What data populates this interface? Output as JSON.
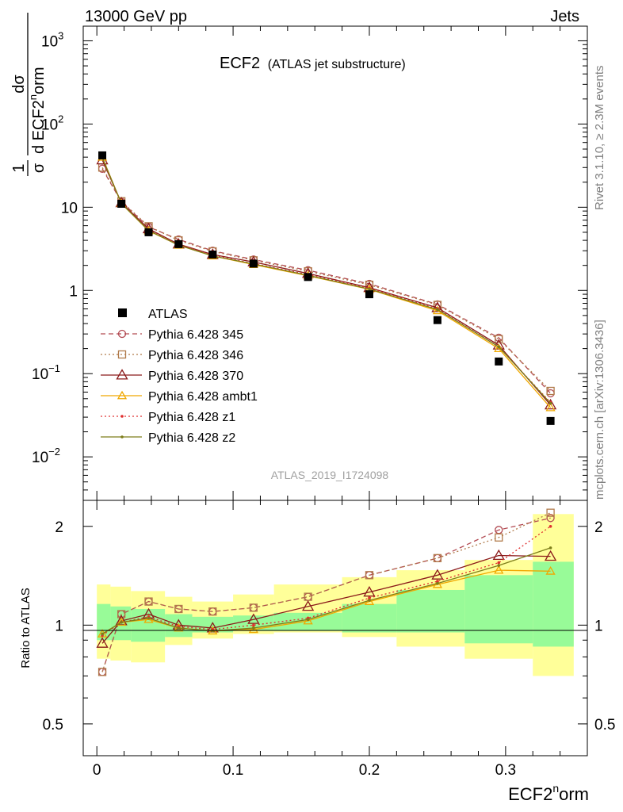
{
  "header": {
    "left": "13000 GeV pp",
    "right": "Jets"
  },
  "side_labels": {
    "rivet": "Rivet 3.1.10, ≥ 2.3M events",
    "mcplots": "mcplots.cern.ch [arXiv:1306.3436]"
  },
  "watermark": "ATLAS_2019_I1724098",
  "chart_data": {
    "type": "line",
    "title": "ECF2",
    "subtitle": "(ATLAS jet substructure)",
    "xlabel": "ECF2",
    "xlabel_sup": "n",
    "xlabel_tail": "orm",
    "ylabel_top": {
      "frac1": {
        "num": "1",
        "den": "σ"
      },
      "frac2": {
        "num": "dσ",
        "den": "d ECF2",
        "den_sup": "n",
        "den_tail": "orm"
      }
    },
    "ratio_ylabel": "Ratio to ATLAS",
    "xlim": [
      -0.01,
      0.36
    ],
    "ylim_main": [
      0.003,
      1500
    ],
    "ylim_ratio": [
      0.4,
      2.4
    ],
    "log_y_main": true,
    "log_y_ratio": true,
    "x_ticks": [
      0,
      0.1,
      0.2,
      0.3
    ],
    "x_tick_labels": [
      "0",
      "0.1",
      "0.2",
      "0.3"
    ],
    "main_y_ticks": [
      {
        "value": 1000,
        "base": "10",
        "exp": "3"
      },
      {
        "value": 100,
        "base": "10",
        "exp": "2"
      },
      {
        "value": 10,
        "base": "10",
        "exp": ""
      },
      {
        "value": 1,
        "base": "1",
        "exp": ""
      },
      {
        "value": 0.1,
        "base": "10",
        "exp": "−1"
      },
      {
        "value": 0.01,
        "base": "10",
        "exp": "−2"
      }
    ],
    "ratio_y_ticks": [
      {
        "value": 2,
        "label": "2"
      },
      {
        "value": 1,
        "label": "1"
      },
      {
        "value": 0.5,
        "label": "0.5"
      }
    ],
    "x": [
      0.004,
      0.018,
      0.038,
      0.06,
      0.085,
      0.115,
      0.155,
      0.2,
      0.25,
      0.295,
      0.333
    ],
    "bins": [
      [
        0.0,
        0.01
      ],
      [
        0.01,
        0.025
      ],
      [
        0.025,
        0.05
      ],
      [
        0.05,
        0.07
      ],
      [
        0.07,
        0.1
      ],
      [
        0.1,
        0.13
      ],
      [
        0.13,
        0.18
      ],
      [
        0.18,
        0.22
      ],
      [
        0.22,
        0.27
      ],
      [
        0.27,
        0.32
      ],
      [
        0.32,
        0.35
      ]
    ],
    "band_yellow": [
      [
        0.79,
        1.33
      ],
      [
        0.78,
        1.31
      ],
      [
        0.77,
        1.27
      ],
      [
        0.87,
        1.22
      ],
      [
        0.91,
        1.18
      ],
      [
        0.94,
        1.24
      ],
      [
        0.95,
        1.33
      ],
      [
        0.92,
        1.4
      ],
      [
        0.86,
        1.47
      ],
      [
        0.79,
        1.58
      ],
      [
        0.7,
        2.18
      ]
    ],
    "band_green": [
      [
        0.9,
        1.16
      ],
      [
        0.9,
        1.14
      ],
      [
        0.89,
        1.12
      ],
      [
        0.92,
        1.08
      ],
      [
        0.95,
        1.06
      ],
      [
        0.96,
        1.07
      ],
      [
        0.96,
        1.09
      ],
      [
        0.95,
        1.16
      ],
      [
        0.95,
        1.28
      ],
      [
        0.88,
        1.42
      ],
      [
        0.86,
        1.56
      ]
    ],
    "data": {
      "name": "ATLAS",
      "color": "#000000",
      "values": [
        42,
        11,
        5.0,
        3.6,
        2.7,
        2.1,
        1.45,
        0.9,
        0.44,
        0.14,
        0.027
      ]
    },
    "series": [
      {
        "name": "Pythia 6.428 345",
        "color": "#b24a52",
        "style": "dashed",
        "marker": "circle",
        "values": [
          29,
          11.6,
          5.8,
          4.1,
          3.0,
          2.35,
          1.75,
          1.2,
          0.68,
          0.27,
          0.058
        ],
        "ratio": [
          0.72,
          1.08,
          1.18,
          1.12,
          1.1,
          1.13,
          1.22,
          1.42,
          1.6,
          1.95,
          2.12
        ]
      },
      {
        "name": "Pythia 6.428 346",
        "color": "#b07a4a",
        "style": "dotted",
        "marker": "square",
        "values": [
          30,
          11.8,
          5.9,
          4.0,
          2.95,
          2.3,
          1.7,
          1.17,
          0.67,
          0.26,
          0.062
        ],
        "ratio": [
          0.72,
          1.08,
          1.18,
          1.12,
          1.1,
          1.13,
          1.22,
          1.42,
          1.6,
          1.85,
          2.2
        ]
      },
      {
        "name": "Pythia 6.428 370",
        "color": "#8b1a1a",
        "style": "solid",
        "marker": "triangle",
        "values": [
          37,
          11.3,
          5.5,
          3.6,
          2.7,
          2.2,
          1.6,
          1.08,
          0.62,
          0.22,
          0.042
        ],
        "ratio": [
          0.88,
          1.03,
          1.08,
          1.0,
          0.98,
          1.04,
          1.14,
          1.26,
          1.42,
          1.63,
          1.62
        ]
      },
      {
        "name": "Pythia 6.428 ambt1",
        "color": "#f0a800",
        "style": "solid",
        "marker": "triangle-open",
        "values": [
          40,
          11.1,
          5.2,
          3.5,
          2.6,
          2.05,
          1.5,
          1.03,
          0.57,
          0.2,
          0.039
        ],
        "ratio": [
          0.94,
          1.02,
          1.04,
          0.98,
          0.96,
          0.97,
          1.03,
          1.18,
          1.33,
          1.47,
          1.46
        ]
      },
      {
        "name": "Pythia 6.428 z1",
        "color": "#e03030",
        "style": "dotted",
        "marker": "dot",
        "values": [
          39,
          11.2,
          5.3,
          3.55,
          2.65,
          2.1,
          1.55,
          1.06,
          0.6,
          0.21,
          0.045
        ],
        "ratio": [
          0.93,
          1.02,
          1.06,
          0.99,
          0.97,
          1.0,
          1.05,
          1.21,
          1.36,
          1.55,
          2.0
        ]
      },
      {
        "name": "Pythia 6.428 z2",
        "color": "#7d7d1a",
        "style": "solid",
        "marker": "dot",
        "values": [
          39.5,
          11.1,
          5.25,
          3.5,
          2.6,
          2.08,
          1.52,
          1.04,
          0.59,
          0.21,
          0.044
        ],
        "ratio": [
          0.94,
          1.02,
          1.05,
          0.98,
          0.96,
          0.98,
          1.04,
          1.19,
          1.34,
          1.52,
          1.72
        ]
      }
    ],
    "band_colors": {
      "yellow": "#ffff99",
      "green": "#98fb98"
    }
  }
}
